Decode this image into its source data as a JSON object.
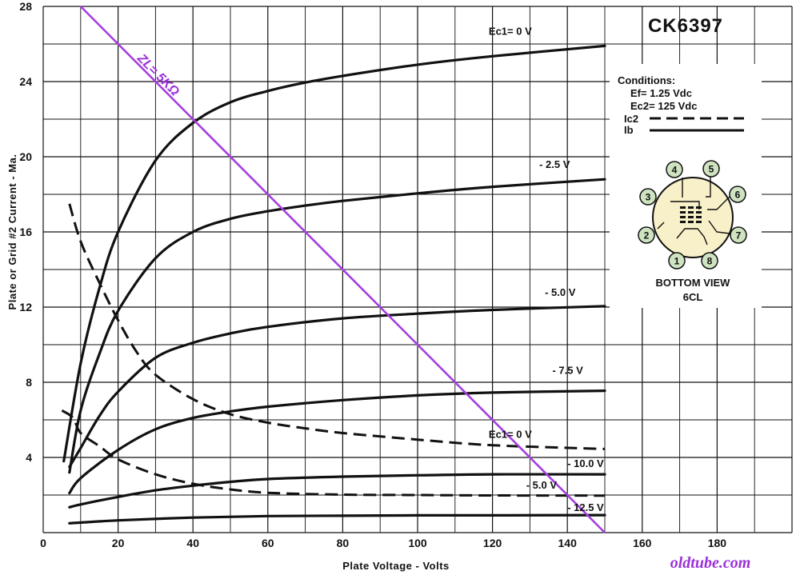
{
  "chart_data": {
    "type": "line",
    "title": "CK6397",
    "xlabel": "Plate Voltage - Volts",
    "ylabel": "Plate or Grid #2 Current - Ma.",
    "xlim": [
      0,
      200
    ],
    "ylim": [
      0,
      28
    ],
    "x_ticks": [
      0,
      20,
      40,
      60,
      80,
      100,
      120,
      140,
      160,
      180
    ],
    "y_ticks": [
      4,
      8,
      12,
      16,
      20,
      24,
      28
    ],
    "grid": true,
    "plate_series": [
      {
        "name": "Ec1= 0 V",
        "style": "solid",
        "points": [
          [
            5.5,
            3.8
          ],
          [
            10,
            9
          ],
          [
            15,
            13
          ],
          [
            20,
            16
          ],
          [
            30,
            19.8
          ],
          [
            40,
            21.8
          ],
          [
            50,
            22.9
          ],
          [
            60,
            23.5
          ],
          [
            70,
            23.95
          ],
          [
            80,
            24.3
          ],
          [
            100,
            24.9
          ],
          [
            120,
            25.35
          ],
          [
            150,
            25.9
          ]
        ]
      },
      {
        "name": "- 2.5 V",
        "style": "solid",
        "points": [
          [
            7,
            3.2
          ],
          [
            10,
            6.5
          ],
          [
            15,
            9.5
          ],
          [
            20,
            11.8
          ],
          [
            30,
            14.6
          ],
          [
            40,
            16
          ],
          [
            50,
            16.7
          ],
          [
            60,
            17.1
          ],
          [
            70,
            17.4
          ],
          [
            80,
            17.65
          ],
          [
            100,
            18.05
          ],
          [
            120,
            18.4
          ],
          [
            150,
            18.8
          ]
        ]
      },
      {
        "name": "- 5.0 V",
        "style": "solid",
        "points": [
          [
            7,
            3.5
          ],
          [
            10,
            4.5
          ],
          [
            15,
            6.2
          ],
          [
            20,
            7.5
          ],
          [
            30,
            9.3
          ],
          [
            40,
            10.1
          ],
          [
            50,
            10.6
          ],
          [
            60,
            10.95
          ],
          [
            80,
            11.4
          ],
          [
            100,
            11.65
          ],
          [
            120,
            11.85
          ],
          [
            150,
            12.05
          ]
        ]
      },
      {
        "name": "- 7.5 V",
        "style": "solid",
        "points": [
          [
            7,
            2.1
          ],
          [
            10,
            2.9
          ],
          [
            20,
            4.4
          ],
          [
            30,
            5.5
          ],
          [
            40,
            6.1
          ],
          [
            50,
            6.45
          ],
          [
            60,
            6.7
          ],
          [
            80,
            7.05
          ],
          [
            100,
            7.3
          ],
          [
            120,
            7.45
          ],
          [
            150,
            7.55
          ]
        ]
      },
      {
        "name": "- 10.0 V",
        "style": "solid",
        "points": [
          [
            7,
            1.35
          ],
          [
            10,
            1.5
          ],
          [
            20,
            1.9
          ],
          [
            30,
            2.25
          ],
          [
            40,
            2.5
          ],
          [
            50,
            2.7
          ],
          [
            60,
            2.85
          ],
          [
            80,
            2.98
          ],
          [
            100,
            3.05
          ],
          [
            120,
            3.1
          ],
          [
            150,
            3.1
          ]
        ]
      },
      {
        "name": "- 12.5 V",
        "style": "solid",
        "points": [
          [
            7,
            0.5
          ],
          [
            20,
            0.65
          ],
          [
            40,
            0.8
          ],
          [
            60,
            0.88
          ],
          [
            80,
            0.9
          ],
          [
            100,
            0.92
          ],
          [
            120,
            0.92
          ],
          [
            150,
            0.93
          ]
        ]
      }
    ],
    "screen_series": [
      {
        "name": "Ec1= 0 V",
        "style": "dashed",
        "points": [
          [
            7,
            17.5
          ],
          [
            10,
            15.5
          ],
          [
            15,
            13.3
          ],
          [
            20,
            11.3
          ],
          [
            25,
            9.6
          ],
          [
            30,
            8.4
          ],
          [
            40,
            7.1
          ],
          [
            50,
            6.3
          ],
          [
            60,
            5.85
          ],
          [
            70,
            5.55
          ],
          [
            80,
            5.3
          ],
          [
            100,
            4.95
          ],
          [
            120,
            4.65
          ],
          [
            150,
            4.45
          ]
        ]
      },
      {
        "name": "- 5.0 V",
        "style": "dashed",
        "points": [
          [
            5,
            6.5
          ],
          [
            8,
            6.1
          ],
          [
            10,
            5.3
          ],
          [
            15,
            4.6
          ],
          [
            20,
            3.9
          ],
          [
            30,
            3.1
          ],
          [
            40,
            2.6
          ],
          [
            50,
            2.3
          ],
          [
            60,
            2.12
          ],
          [
            80,
            2.02
          ],
          [
            100,
            2.0
          ],
          [
            120,
            1.98
          ],
          [
            150,
            1.97
          ]
        ]
      }
    ],
    "load_line": {
      "label": "ZL= 5KΩ",
      "points": [
        [
          10,
          28
        ],
        [
          150,
          0
        ]
      ],
      "color": "#a53fe0"
    },
    "curve_labels": [
      {
        "text": "Ec1= 0 V",
        "x": 119,
        "y": 26.5
      },
      {
        "text": "- 2.5 V",
        "x": 132.5,
        "y": 19.4
      },
      {
        "text": "- 5.0 V",
        "x": 134,
        "y": 12.6
      },
      {
        "text": "- 7.5 V",
        "x": 136,
        "y": 8.45
      },
      {
        "text": "Ec1= 0 V",
        "x": 119,
        "y": 5.05
      },
      {
        "text": "- 10.0 V",
        "x": 140,
        "y": 3.5
      },
      {
        "text": "- 5.0 V",
        "x": 129,
        "y": 2.35
      },
      {
        "text": "- 12.5 V",
        "x": 140,
        "y": 1.15
      }
    ]
  },
  "header": {
    "tube_type": "CK6397"
  },
  "conditions": {
    "heading": "Conditions:",
    "ef": "Ef= 1.25 Vdc",
    "ec2": "Ec2= 125 Vdc",
    "ic2_legend": "Ic2",
    "ib_legend": "Ib"
  },
  "base_diagram": {
    "pins": [
      "1",
      "2",
      "3",
      "4",
      "5",
      "6",
      "7",
      "8"
    ],
    "view_label": "BOTTOM VIEW",
    "base_code": "6CL"
  },
  "watermark": "oldtube.com",
  "colors": {
    "grid": "#111111",
    "curve": "#111111",
    "load_line": "#a53fe0",
    "base_fill": "#f8f0c8",
    "pin_fill": "#cfe3c0",
    "watermark": "#9b30d9"
  }
}
